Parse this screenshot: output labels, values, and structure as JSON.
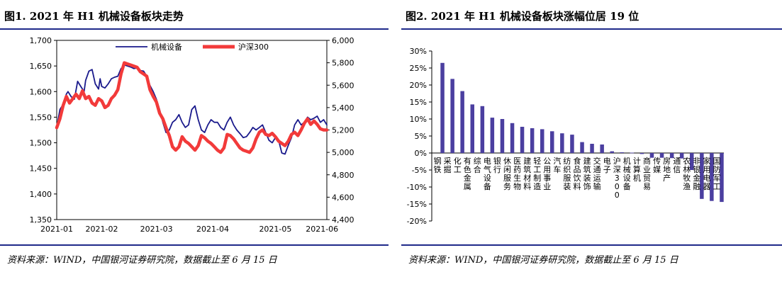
{
  "left_panel": {
    "title": "图1. 2021 年 H1 机械设备板块走势",
    "source": "资料来源：WIND，中国银河证券研究院，数据截止至 6 月 15 日"
  },
  "right_panel": {
    "title": "图2. 2021 年 H1 机械设备板块涨幅位居 19 位",
    "source": "资料来源：WIND，中国银河证券研究院，数据截止至 6 月 15 日"
  },
  "colors": {
    "navy": "#1a1a8c",
    "red": "#f23a3a",
    "bar": "#4b3fa0",
    "rule": "#1f2a8a"
  },
  "chart_data": [
    {
      "type": "line",
      "title": "图1. 2021 年 H1 机械设备板块走势",
      "x_ticks": [
        "2021-01",
        "2021-02",
        "2021-03",
        "2021-04",
        "2021-05",
        "2021-06"
      ],
      "ylim_left": [
        1350,
        1700
      ],
      "yticks_left": [
        "1,350",
        "1,400",
        "1,450",
        "1,500",
        "1,550",
        "1,600",
        "1,650",
        "1,700"
      ],
      "ylim_right": [
        4400,
        6000
      ],
      "yticks_right": [
        "4,400",
        "4,600",
        "4,800",
        "5,000",
        "5,200",
        "5,400",
        "5,600",
        "5,800",
        "6,000"
      ],
      "legend_position": "top",
      "series": [
        {
          "name": "机械设备",
          "axis": "left",
          "color": "#1a1a8c",
          "points": [
            [
              0,
              1530
            ],
            [
              2,
              1565
            ],
            [
              4,
              1575
            ],
            [
              6,
              1595
            ],
            [
              7,
              1600
            ],
            [
              9,
              1590
            ],
            [
              11,
              1585
            ],
            [
              13,
              1620
            ],
            [
              15,
              1610
            ],
            [
              17,
              1600
            ],
            [
              18,
              1622
            ],
            [
              20,
              1640
            ],
            [
              22,
              1643
            ],
            [
              24,
              1615
            ],
            [
              26,
              1605
            ],
            [
              27,
              1625
            ],
            [
              28,
              1610
            ],
            [
              30,
              1607
            ],
            [
              32,
              1615
            ],
            [
              34,
              1625
            ],
            [
              36,
              1628
            ],
            [
              38,
              1630
            ],
            [
              40,
              1645
            ],
            [
              42,
              1652
            ],
            [
              44,
              1650
            ],
            [
              46,
              1648
            ],
            [
              48,
              1645
            ],
            [
              50,
              1646
            ],
            [
              52,
              1641
            ],
            [
              54,
              1640
            ],
            [
              56,
              1630
            ],
            [
              58,
              1612
            ],
            [
              60,
              1600
            ],
            [
              62,
              1585
            ],
            [
              64,
              1565
            ],
            [
              66,
              1540
            ],
            [
              68,
              1520
            ],
            [
              70,
              1525
            ],
            [
              72,
              1540
            ],
            [
              74,
              1545
            ],
            [
              76,
              1555
            ],
            [
              78,
              1540
            ],
            [
              80,
              1530
            ],
            [
              82,
              1535
            ],
            [
              84,
              1565
            ],
            [
              86,
              1572
            ],
            [
              88,
              1545
            ],
            [
              90,
              1525
            ],
            [
              92,
              1520
            ],
            [
              94,
              1535
            ],
            [
              96,
              1545
            ],
            [
              98,
              1540
            ],
            [
              100,
              1540
            ],
            [
              102,
              1530
            ],
            [
              104,
              1525
            ],
            [
              106,
              1540
            ],
            [
              108,
              1550
            ],
            [
              110,
              1535
            ],
            [
              112,
              1525
            ],
            [
              114,
              1518
            ],
            [
              116,
              1510
            ],
            [
              118,
              1512
            ],
            [
              120,
              1520
            ],
            [
              122,
              1530
            ],
            [
              124,
              1525
            ],
            [
              126,
              1530
            ],
            [
              128,
              1535
            ],
            [
              130,
              1520
            ],
            [
              132,
              1505
            ],
            [
              134,
              1500
            ],
            [
              136,
              1510
            ],
            [
              138,
              1505
            ],
            [
              140,
              1480
            ],
            [
              142,
              1478
            ],
            [
              144,
              1495
            ],
            [
              146,
              1510
            ],
            [
              148,
              1535
            ],
            [
              150,
              1545
            ],
            [
              152,
              1535
            ],
            [
              154,
              1540
            ],
            [
              156,
              1550
            ],
            [
              158,
              1545
            ],
            [
              160,
              1548
            ],
            [
              162,
              1552
            ],
            [
              164,
              1540
            ],
            [
              166,
              1545
            ],
            [
              168,
              1535
            ]
          ]
        },
        {
          "name": "沪深300",
          "axis": "right",
          "color": "#f23a3a",
          "points": [
            [
              0,
              5220
            ],
            [
              2,
              5300
            ],
            [
              4,
              5420
            ],
            [
              6,
              5500
            ],
            [
              8,
              5440
            ],
            [
              10,
              5480
            ],
            [
              12,
              5520
            ],
            [
              14,
              5480
            ],
            [
              16,
              5550
            ],
            [
              18,
              5480
            ],
            [
              20,
              5500
            ],
            [
              22,
              5440
            ],
            [
              24,
              5420
            ],
            [
              26,
              5480
            ],
            [
              28,
              5460
            ],
            [
              30,
              5400
            ],
            [
              32,
              5420
            ],
            [
              34,
              5480
            ],
            [
              36,
              5510
            ],
            [
              38,
              5560
            ],
            [
              40,
              5700
            ],
            [
              42,
              5800
            ],
            [
              44,
              5790
            ],
            [
              46,
              5780
            ],
            [
              48,
              5770
            ],
            [
              50,
              5760
            ],
            [
              52,
              5720
            ],
            [
              54,
              5700
            ],
            [
              56,
              5680
            ],
            [
              58,
              5560
            ],
            [
              60,
              5500
            ],
            [
              62,
              5450
            ],
            [
              64,
              5350
            ],
            [
              66,
              5300
            ],
            [
              68,
              5220
            ],
            [
              70,
              5150
            ],
            [
              72,
              5050
            ],
            [
              74,
              5020
            ],
            [
              76,
              5050
            ],
            [
              78,
              5140
            ],
            [
              80,
              5100
            ],
            [
              82,
              5080
            ],
            [
              84,
              5050
            ],
            [
              86,
              5020
            ],
            [
              88,
              5060
            ],
            [
              90,
              5150
            ],
            [
              92,
              5130
            ],
            [
              94,
              5100
            ],
            [
              96,
              5080
            ],
            [
              98,
              5050
            ],
            [
              100,
              5020
            ],
            [
              102,
              5000
            ],
            [
              104,
              5040
            ],
            [
              106,
              5160
            ],
            [
              108,
              5150
            ],
            [
              110,
              5120
            ],
            [
              112,
              5080
            ],
            [
              114,
              5040
            ],
            [
              116,
              5020
            ],
            [
              118,
              5010
            ],
            [
              120,
              5000
            ],
            [
              122,
              5040
            ],
            [
              124,
              5120
            ],
            [
              126,
              5180
            ],
            [
              128,
              5200
            ],
            [
              130,
              5160
            ],
            [
              132,
              5150
            ],
            [
              134,
              5170
            ],
            [
              136,
              5140
            ],
            [
              138,
              5100
            ],
            [
              140,
              5080
            ],
            [
              142,
              5060
            ],
            [
              144,
              5100
            ],
            [
              146,
              5160
            ],
            [
              148,
              5180
            ],
            [
              150,
              5150
            ],
            [
              152,
              5200
            ],
            [
              154,
              5260
            ],
            [
              156,
              5300
            ],
            [
              158,
              5250
            ],
            [
              160,
              5280
            ],
            [
              162,
              5250
            ],
            [
              164,
              5210
            ],
            [
              166,
              5200
            ],
            [
              168,
              5200
            ]
          ]
        }
      ]
    },
    {
      "type": "bar",
      "title": "图2. 2021 年 H1 机械设备板块涨幅位居 19 位",
      "ylim": [
        -20,
        30
      ],
      "yticks": [
        "30%",
        "25%",
        "20%",
        "15%",
        "10%",
        "5%",
        "0%",
        "-5%",
        "-10%",
        "-15%",
        "-20%"
      ],
      "categories": [
        "钢铁",
        "采掘",
        "化工",
        "有色金属",
        "综合",
        "电气设备",
        "银行",
        "休闲服务",
        "医药生物",
        "建筑材料",
        "轻工制造",
        "公用事业",
        "汽车",
        "纺织服装",
        "食品饮料",
        "建筑装饰",
        "交通运输",
        "电子",
        "沪深300",
        "机械设备",
        "计算机",
        "商业贸易",
        "传媒",
        "房地产",
        "通信",
        "农林牧渔",
        "非银金融",
        "家用电器",
        "国防军工"
      ],
      "values": [
        26.5,
        21.8,
        18.2,
        14.3,
        13.8,
        10.4,
        10.0,
        8.8,
        7.7,
        7.3,
        7.0,
        6.4,
        5.8,
        5.4,
        3.2,
        2.7,
        2.5,
        0.5,
        0.2,
        0.1,
        -0.3,
        -1.4,
        -1.4,
        -1.5,
        -1.6,
        -5.0,
        -13.5,
        -14.1,
        -14.4
      ]
    }
  ]
}
